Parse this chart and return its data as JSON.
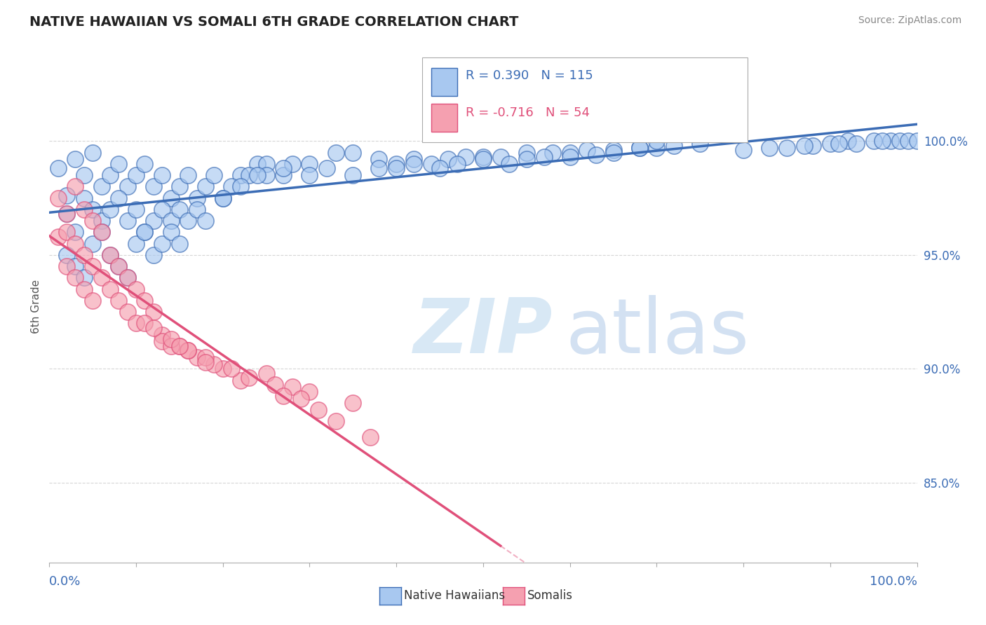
{
  "title": "NATIVE HAWAIIAN VS SOMALI 6TH GRADE CORRELATION CHART",
  "source": "Source: ZipAtlas.com",
  "ylabel": "6th Grade",
  "ytick_labels": [
    "85.0%",
    "90.0%",
    "95.0%",
    "100.0%"
  ],
  "ytick_values": [
    0.85,
    0.9,
    0.95,
    1.0
  ],
  "xlim": [
    0.0,
    1.0
  ],
  "ylim": [
    0.815,
    1.04
  ],
  "R_blue": 0.39,
  "N_blue": 115,
  "R_pink": -0.716,
  "N_pink": 54,
  "blue_color": "#A8C8F0",
  "blue_line_color": "#3B6CB5",
  "pink_color": "#F5A0B0",
  "pink_line_color": "#E0507A",
  "watermark_color": "#D8E8F5",
  "background_color": "#FFFFFF",
  "grid_color": "#CCCCCC",
  "title_color": "#222222",
  "axis_label_color": "#3B6CB5",
  "legend_label_blue": "Native Hawaiians",
  "legend_label_pink": "Somalis",
  "blue_scatter_x": [
    0.02,
    0.01,
    0.03,
    0.02,
    0.04,
    0.03,
    0.05,
    0.04,
    0.02,
    0.06,
    0.05,
    0.03,
    0.07,
    0.06,
    0.08,
    0.05,
    0.09,
    0.04,
    0.07,
    0.1,
    0.06,
    0.08,
    0.11,
    0.09,
    0.12,
    0.07,
    0.1,
    0.13,
    0.11,
    0.14,
    0.08,
    0.12,
    0.15,
    0.1,
    0.13,
    0.16,
    0.09,
    0.11,
    0.17,
    0.14,
    0.18,
    0.12,
    0.15,
    0.19,
    0.13,
    0.2,
    0.16,
    0.22,
    0.14,
    0.24,
    0.17,
    0.21,
    0.15,
    0.23,
    0.18,
    0.25,
    0.2,
    0.27,
    0.22,
    0.3,
    0.25,
    0.28,
    0.33,
    0.24,
    0.35,
    0.27,
    0.38,
    0.3,
    0.4,
    0.32,
    0.42,
    0.35,
    0.44,
    0.38,
    0.46,
    0.4,
    0.48,
    0.42,
    0.5,
    0.45,
    0.52,
    0.47,
    0.55,
    0.5,
    0.58,
    0.53,
    0.6,
    0.55,
    0.62,
    0.57,
    0.65,
    0.6,
    0.68,
    0.63,
    0.7,
    0.65,
    0.72,
    0.68,
    0.75,
    0.7,
    0.8,
    0.85,
    0.88,
    0.9,
    0.92,
    0.95,
    0.97,
    0.98,
    0.99,
    1.0,
    0.83,
    0.87,
    0.91,
    0.93,
    0.96
  ],
  "blue_scatter_y": [
    0.976,
    0.988,
    0.992,
    0.968,
    0.985,
    0.96,
    0.995,
    0.975,
    0.95,
    0.98,
    0.97,
    0.945,
    0.985,
    0.965,
    0.99,
    0.955,
    0.98,
    0.94,
    0.97,
    0.985,
    0.96,
    0.975,
    0.99,
    0.965,
    0.98,
    0.95,
    0.97,
    0.985,
    0.96,
    0.975,
    0.945,
    0.965,
    0.98,
    0.955,
    0.97,
    0.985,
    0.94,
    0.96,
    0.975,
    0.965,
    0.98,
    0.95,
    0.97,
    0.985,
    0.955,
    0.975,
    0.965,
    0.985,
    0.96,
    0.99,
    0.97,
    0.98,
    0.955,
    0.985,
    0.965,
    0.99,
    0.975,
    0.985,
    0.98,
    0.99,
    0.985,
    0.99,
    0.995,
    0.985,
    0.995,
    0.988,
    0.992,
    0.985,
    0.99,
    0.988,
    0.992,
    0.985,
    0.99,
    0.988,
    0.992,
    0.988,
    0.993,
    0.99,
    0.993,
    0.988,
    0.993,
    0.99,
    0.995,
    0.992,
    0.995,
    0.99,
    0.995,
    0.992,
    0.996,
    0.993,
    0.996,
    0.993,
    0.997,
    0.994,
    0.997,
    0.995,
    0.998,
    0.997,
    0.999,
    1.0,
    0.996,
    0.997,
    0.998,
    0.999,
    1.0,
    1.0,
    1.0,
    1.0,
    1.0,
    1.0,
    0.997,
    0.998,
    0.999,
    0.999,
    1.0
  ],
  "pink_scatter_x": [
    0.01,
    0.02,
    0.01,
    0.03,
    0.02,
    0.04,
    0.03,
    0.02,
    0.05,
    0.04,
    0.03,
    0.06,
    0.05,
    0.04,
    0.07,
    0.06,
    0.05,
    0.08,
    0.07,
    0.09,
    0.08,
    0.1,
    0.09,
    0.11,
    0.1,
    0.12,
    0.13,
    0.15,
    0.17,
    0.2,
    0.13,
    0.16,
    0.19,
    0.22,
    0.3,
    0.35,
    0.14,
    0.18,
    0.25,
    0.28,
    0.11,
    0.14,
    0.16,
    0.21,
    0.26,
    0.29,
    0.12,
    0.15,
    0.18,
    0.23,
    0.27,
    0.31,
    0.33,
    0.37
  ],
  "pink_scatter_y": [
    0.975,
    0.968,
    0.958,
    0.98,
    0.96,
    0.97,
    0.955,
    0.945,
    0.965,
    0.95,
    0.94,
    0.96,
    0.945,
    0.935,
    0.95,
    0.94,
    0.93,
    0.945,
    0.935,
    0.94,
    0.93,
    0.935,
    0.925,
    0.93,
    0.92,
    0.925,
    0.915,
    0.91,
    0.905,
    0.9,
    0.912,
    0.908,
    0.902,
    0.895,
    0.89,
    0.885,
    0.91,
    0.905,
    0.898,
    0.892,
    0.92,
    0.913,
    0.908,
    0.9,
    0.893,
    0.887,
    0.918,
    0.91,
    0.903,
    0.896,
    0.888,
    0.882,
    0.877,
    0.87
  ]
}
